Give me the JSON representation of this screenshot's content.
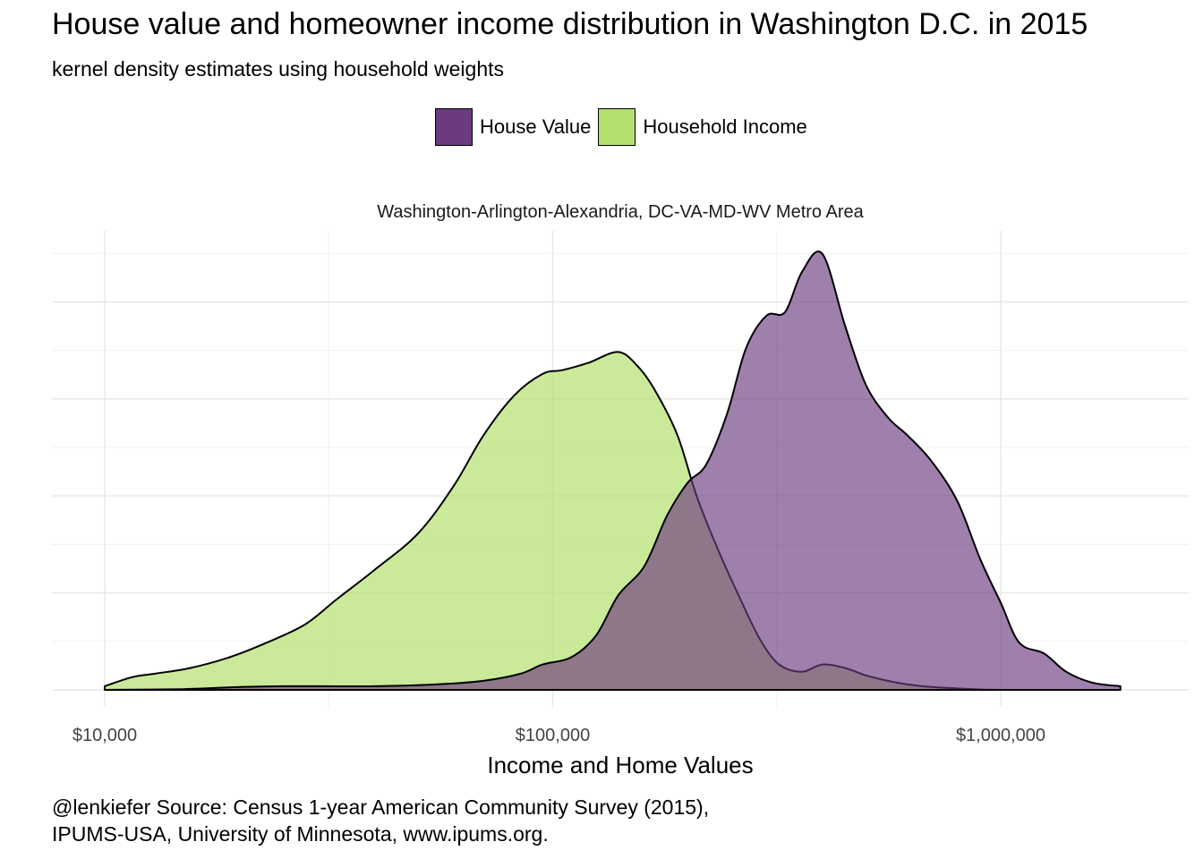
{
  "chart_data": {
    "type": "area",
    "title": "House value and homeowner income distribution in Washington D.C. in 2015",
    "subtitle": "kernel density estimates using household weights",
    "facet_label": "Washington-Arlington-Alexandria, DC-VA-MD-WV Metro Area",
    "xlabel": "Income and Home Values",
    "ylabel": "",
    "x_scale": "log10",
    "xlim": [
      10000,
      1850000
    ],
    "ylim": [
      0,
      1.05
    ],
    "x_ticks": [
      {
        "value": 10000,
        "label": "$10,000"
      },
      {
        "value": 100000,
        "label": "$100,000"
      },
      {
        "value": 1000000,
        "label": "$1,000,000"
      }
    ],
    "y_tick_labels_shown": false,
    "grid": true,
    "legend_position": "top",
    "caption": [
      "@lenkiefer Source: Census 1-year American Community Survey (2015),",
      "IPUMS-USA, University of Minnesota, www.ipums.org."
    ],
    "series": [
      {
        "name": "Household Income",
        "color": "#b3e06e",
        "opacity": 0.7,
        "x": [
          10000,
          11500,
          13000,
          15500,
          19000,
          23000,
          28000,
          33000,
          40000,
          50000,
          60000,
          70000,
          82000,
          95000,
          105000,
          120000,
          140000,
          155000,
          170000,
          190000,
          210000,
          235000,
          260000,
          290000,
          320000,
          360000,
          400000,
          450000,
          500000,
          560000,
          620000,
          700000,
          800000,
          900000,
          1000000
        ],
        "y": [
          0.01,
          0.035,
          0.045,
          0.06,
          0.09,
          0.13,
          0.18,
          0.25,
          0.33,
          0.43,
          0.56,
          0.7,
          0.81,
          0.87,
          0.88,
          0.9,
          0.93,
          0.89,
          0.82,
          0.7,
          0.53,
          0.38,
          0.26,
          0.14,
          0.07,
          0.05,
          0.07,
          0.06,
          0.04,
          0.025,
          0.015,
          0.008,
          0.004,
          0.001,
          0.0
        ]
      },
      {
        "name": "House Value",
        "color": "#6b3a7f",
        "opacity": 0.65,
        "x": [
          10000,
          15000,
          20000,
          25000,
          30000,
          40000,
          55000,
          70000,
          85000,
          95000,
          110000,
          125000,
          140000,
          160000,
          180000,
          200000,
          220000,
          245000,
          270000,
          300000,
          330000,
          360000,
          400000,
          450000,
          500000,
          560000,
          620000,
          700000,
          800000,
          900000,
          1000000,
          1100000,
          1250000,
          1400000,
          1600000,
          1850000
        ],
        "y": [
          0.0,
          0.002,
          0.008,
          0.01,
          0.01,
          0.01,
          0.015,
          0.025,
          0.045,
          0.07,
          0.09,
          0.15,
          0.26,
          0.34,
          0.48,
          0.57,
          0.62,
          0.76,
          0.94,
          1.03,
          1.04,
          1.15,
          1.2,
          1.0,
          0.84,
          0.75,
          0.7,
          0.63,
          0.52,
          0.36,
          0.24,
          0.13,
          0.1,
          0.05,
          0.02,
          0.01
        ]
      }
    ]
  }
}
